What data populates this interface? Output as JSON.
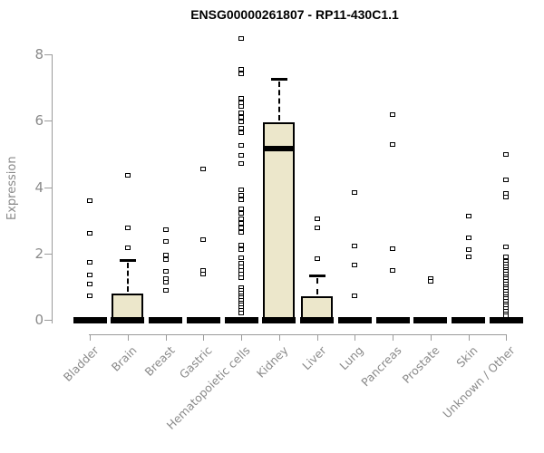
{
  "chart_data": {
    "type": "boxplot",
    "title": "ENSG00000261807 - RP11-430C1.1",
    "ylabel": "Expression",
    "xlabel": "",
    "ylim": [
      0,
      8.6
    ],
    "yticks": [
      0,
      2,
      4,
      6,
      8
    ],
    "grid": false,
    "legend": "none",
    "categories": [
      "Bladder",
      "Brain",
      "Breast",
      "Gastric",
      "Hematopoietic cells",
      "Kidney",
      "Liver",
      "Lung",
      "Pancreas",
      "Prostate",
      "Skin",
      "Unknown / Other"
    ],
    "groups": [
      {
        "name": "Bladder",
        "q1": 0,
        "median": 0,
        "q3": 0,
        "whisker_low": 0,
        "whisker_high": 0,
        "outliers": [
          3.58,
          2.61,
          1.74,
          1.36,
          1.09,
          0.72
        ]
      },
      {
        "name": "Brain",
        "q1": 0,
        "median": 0.02,
        "q3": 0.79,
        "whisker_low": 0,
        "whisker_high": 1.79,
        "outliers": [
          4.37,
          2.76,
          2.18
        ]
      },
      {
        "name": "Breast",
        "q1": 0,
        "median": 0,
        "q3": 0,
        "whisker_low": 0,
        "whisker_high": 0,
        "outliers": [
          2.71,
          2.37,
          1.95,
          1.81,
          1.45,
          1.23,
          1.13,
          0.9
        ]
      },
      {
        "name": "Gastric",
        "q1": 0,
        "median": 0,
        "q3": 0,
        "whisker_low": 0,
        "whisker_high": 0,
        "outliers": [
          4.54,
          2.43,
          1.5,
          1.37
        ]
      },
      {
        "name": "Hematopoietic cells",
        "q1": 0,
        "median": 0,
        "q3": 0,
        "whisker_low": 0,
        "whisker_high": 0,
        "outliers": [
          8.48,
          7.55,
          7.42,
          6.68,
          6.55,
          6.44,
          6.24,
          6.1,
          5.96,
          5.78,
          5.63,
          5.25,
          4.96,
          4.71,
          3.91,
          3.76,
          3.61,
          3.36,
          3.21,
          3.06,
          2.91,
          2.77,
          2.63,
          2.25,
          2.11,
          1.86,
          1.72,
          1.6,
          1.49,
          1.38,
          1.26,
          0.96,
          0.88,
          0.81,
          0.73,
          0.66,
          0.58,
          0.51,
          0.44,
          0.36,
          0.29,
          0.21
        ]
      },
      {
        "name": "Kidney",
        "q1": 0,
        "median": 5.16,
        "q3": 5.95,
        "whisker_low": 0,
        "whisker_high": 7.26,
        "outliers": []
      },
      {
        "name": "Liver",
        "q1": 0,
        "median": 0.02,
        "q3": 0.7,
        "whisker_low": 0,
        "whisker_high": 1.34,
        "outliers": [
          3.04,
          2.76,
          1.84
        ]
      },
      {
        "name": "Lung",
        "q1": 0,
        "median": 0,
        "q3": 0,
        "whisker_low": 0,
        "whisker_high": 0,
        "outliers": [
          3.83,
          2.22,
          1.65,
          0.73
        ]
      },
      {
        "name": "Pancreas",
        "q1": 0,
        "median": 0,
        "q3": 0,
        "whisker_low": 0,
        "whisker_high": 0,
        "outliers": [
          6.2,
          5.29,
          2.14,
          1.49
        ]
      },
      {
        "name": "Prostate",
        "q1": 0,
        "median": 0,
        "q3": 0,
        "whisker_low": 0,
        "whisker_high": 0,
        "outliers": [
          1.25,
          1.17
        ]
      },
      {
        "name": "Skin",
        "q1": 0,
        "median": 0,
        "q3": 0,
        "whisker_low": 0,
        "whisker_high": 0,
        "outliers": [
          3.13,
          2.46,
          2.12,
          1.9
        ]
      },
      {
        "name": "Unknown / Other",
        "q1": 0,
        "median": 0,
        "q3": 0,
        "whisker_low": 0,
        "whisker_high": 0,
        "outliers": [
          5.0,
          4.21,
          3.82,
          3.7,
          2.2,
          1.91,
          1.76,
          1.68,
          1.61,
          1.53,
          1.46,
          1.38,
          1.31,
          1.23,
          1.16,
          1.08,
          1.01,
          0.93,
          0.86,
          0.78,
          0.71,
          0.63,
          0.56,
          0.48,
          0.41,
          0.33,
          0.26,
          0.18,
          0.11
        ]
      }
    ],
    "colors": {
      "box_fill": "#ECE7CB",
      "box_border": "#000000",
      "median": "#000000",
      "axis_line": "#9b9b9b",
      "tick_label": "#8a8a8a",
      "title": "#000000",
      "background": "#ffffff"
    }
  }
}
